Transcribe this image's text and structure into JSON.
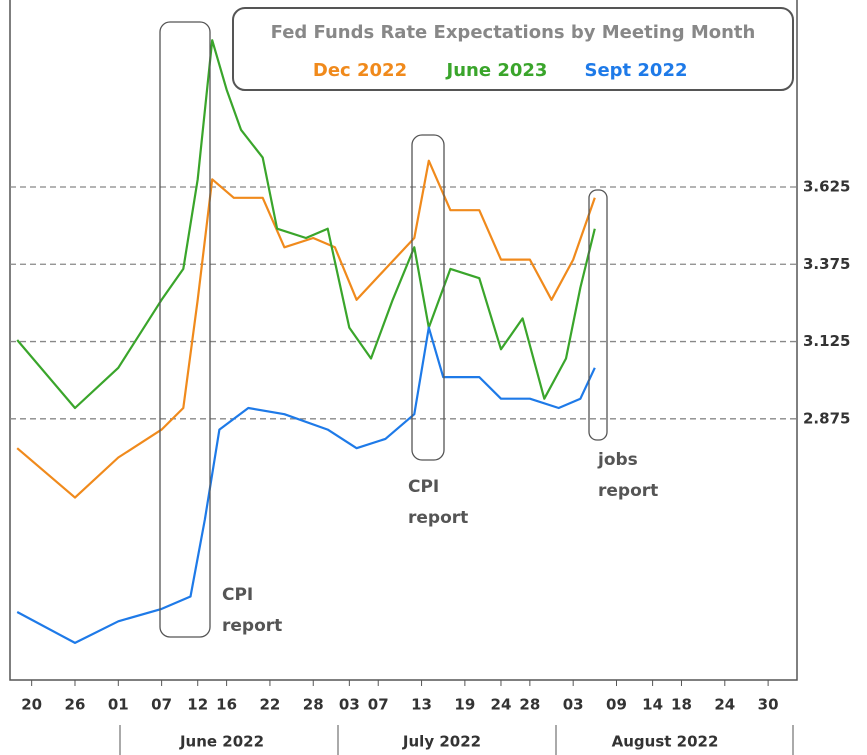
{
  "chart_data": {
    "type": "line",
    "title": "Fed Funds Rate Expectations by Meeting Month",
    "ylim": [
      2.03,
      4.23
    ],
    "yticks": [
      2.875,
      3.125,
      3.375,
      3.625
    ],
    "grid": true,
    "xlim": [
      "2022-05-17",
      "2022-09-03"
    ],
    "xticks": [
      {
        "value": "2022-05-20",
        "label": "20"
      },
      {
        "value": "2022-05-26",
        "label": "26"
      },
      {
        "value": "2022-06-01",
        "label": "01"
      },
      {
        "value": "2022-06-07",
        "label": "07"
      },
      {
        "value": "2022-06-12",
        "label": "12"
      },
      {
        "value": "2022-06-16",
        "label": "16"
      },
      {
        "value": "2022-06-22",
        "label": "22"
      },
      {
        "value": "2022-06-28",
        "label": "28"
      },
      {
        "value": "2022-07-03",
        "label": "03"
      },
      {
        "value": "2022-07-07",
        "label": "07"
      },
      {
        "value": "2022-07-13",
        "label": "13"
      },
      {
        "value": "2022-07-19",
        "label": "19"
      },
      {
        "value": "2022-07-24",
        "label": "24"
      },
      {
        "value": "2022-07-28",
        "label": "28"
      },
      {
        "value": "2022-08-03",
        "label": "03"
      },
      {
        "value": "2022-08-09",
        "label": "09"
      },
      {
        "value": "2022-08-14",
        "label": "14"
      },
      {
        "value": "2022-08-18",
        "label": "18"
      },
      {
        "value": "2022-08-24",
        "label": "24"
      },
      {
        "value": "2022-08-30",
        "label": "30"
      }
    ],
    "x_groups": [
      "June 2022",
      "July 2022",
      "August 2022"
    ],
    "series": [
      {
        "name": "Dec 2022",
        "color": "#f08a1c",
        "x": [
          "2022-05-18",
          "2022-05-26",
          "2022-06-01",
          "2022-06-07",
          "2022-06-10",
          "2022-06-12",
          "2022-06-14",
          "2022-06-17",
          "2022-06-21",
          "2022-06-24",
          "2022-06-28",
          "2022-07-01",
          "2022-07-04",
          "2022-07-08",
          "2022-07-12",
          "2022-07-14",
          "2022-07-17",
          "2022-07-21",
          "2022-07-24",
          "2022-07-28",
          "2022-07-31",
          "2022-08-03",
          "2022-08-06"
        ],
        "values": [
          2.78,
          2.62,
          2.75,
          2.84,
          2.91,
          3.26,
          3.65,
          3.59,
          3.59,
          3.43,
          3.46,
          3.43,
          3.26,
          3.36,
          3.46,
          3.71,
          3.55,
          3.55,
          3.39,
          3.39,
          3.26,
          3.39,
          3.59
        ]
      },
      {
        "name": "June 2023",
        "color": "#3aa52b",
        "x": [
          "2022-05-18",
          "2022-05-26",
          "2022-06-01",
          "2022-06-07",
          "2022-06-10",
          "2022-06-12",
          "2022-06-14",
          "2022-06-16",
          "2022-06-18",
          "2022-06-21",
          "2022-06-23",
          "2022-06-27",
          "2022-06-30",
          "2022-07-03",
          "2022-07-06",
          "2022-07-09",
          "2022-07-12",
          "2022-07-14",
          "2022-07-17",
          "2022-07-21",
          "2022-07-24",
          "2022-07-27",
          "2022-07-30",
          "2022-08-02",
          "2022-08-04",
          "2022-08-06"
        ],
        "values": [
          3.13,
          2.91,
          3.04,
          3.26,
          3.36,
          3.65,
          4.1,
          3.94,
          3.81,
          3.72,
          3.49,
          3.46,
          3.49,
          3.17,
          3.07,
          3.26,
          3.43,
          3.17,
          3.36,
          3.33,
          3.1,
          3.2,
          2.94,
          3.07,
          3.3,
          3.49
        ]
      },
      {
        "name": "Sept 2022",
        "color": "#1e7ae8",
        "x": [
          "2022-05-18",
          "2022-05-26",
          "2022-06-01",
          "2022-06-07",
          "2022-06-11",
          "2022-06-13",
          "2022-06-15",
          "2022-06-19",
          "2022-06-24",
          "2022-06-30",
          "2022-07-04",
          "2022-07-08",
          "2022-07-12",
          "2022-07-14",
          "2022-07-16",
          "2022-07-21",
          "2022-07-24",
          "2022-07-28",
          "2022-08-01",
          "2022-08-04",
          "2022-08-06"
        ],
        "values": [
          2.25,
          2.15,
          2.22,
          2.26,
          2.3,
          2.55,
          2.84,
          2.91,
          2.89,
          2.84,
          2.78,
          2.81,
          2.89,
          3.17,
          3.01,
          3.01,
          2.94,
          2.94,
          2.91,
          2.94,
          3.04
        ]
      }
    ],
    "annotations": [
      [
        "CPI",
        "report"
      ],
      [
        "CPI",
        "report"
      ],
      [
        "jobs",
        "report"
      ]
    ]
  }
}
